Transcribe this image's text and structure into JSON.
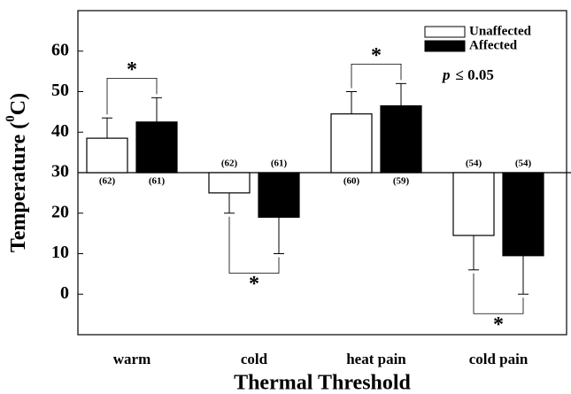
{
  "chart_data": {
    "type": "bar",
    "xlabel": "Thermal Threshold",
    "ylabel": {
      "pre": "Temperature (",
      "sup": "0",
      "post": "C)"
    },
    "categories": [
      "warm",
      "cold",
      "heat pain",
      "cold pain"
    ],
    "baseline": 30,
    "series": [
      {
        "name": "Unaffected",
        "color": "#ffffff",
        "values": [
          38.5,
          25,
          44.5,
          14.5
        ],
        "errors": [
          5,
          5,
          5.5,
          8.5
        ],
        "n_labels": [
          "(62)",
          "(62)",
          "(60)",
          "(54)"
        ]
      },
      {
        "name": "Affected",
        "color": "#000000",
        "values": [
          42.5,
          19,
          46.5,
          9.5
        ],
        "errors": [
          6,
          9,
          5.5,
          9.5
        ],
        "n_labels": [
          "(61)",
          "(61)",
          "(59)",
          "(54)"
        ]
      }
    ],
    "annotations": [
      "*",
      "*",
      "*",
      "*"
    ],
    "p_text": [
      "p",
      "≤ 0.05"
    ],
    "ylim": [
      -10,
      70
    ],
    "yticks": [
      0,
      10,
      20,
      30,
      40,
      50,
      60
    ]
  }
}
